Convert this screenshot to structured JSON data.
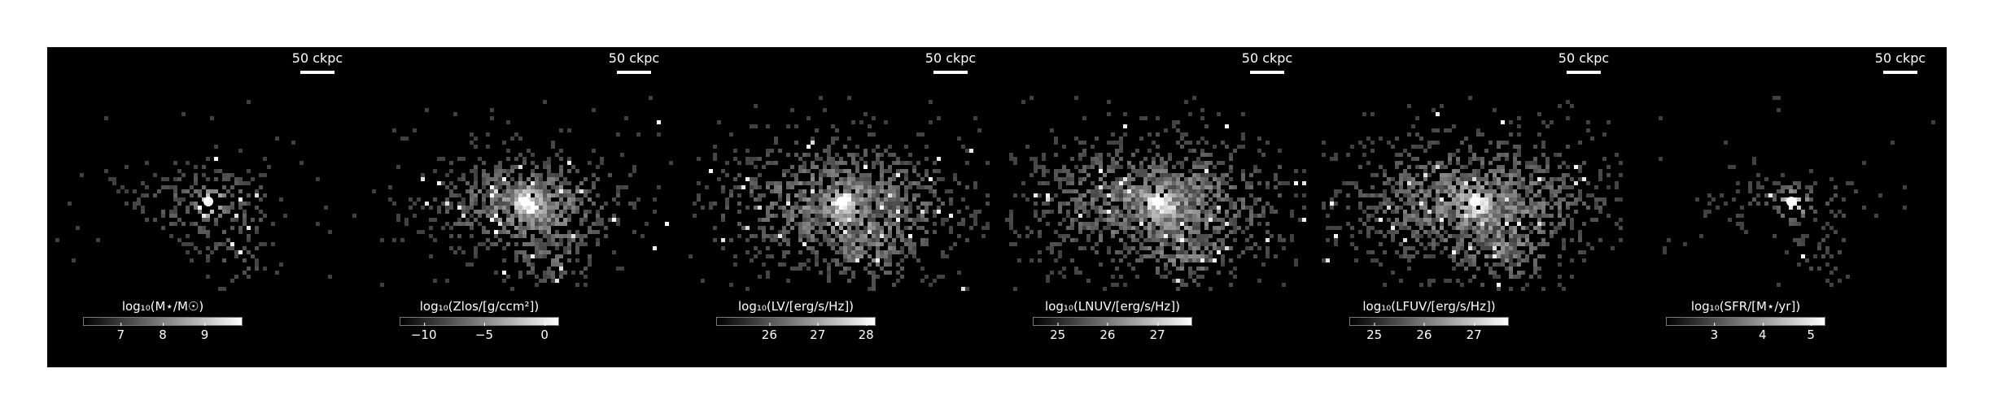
{
  "panels": [
    {
      "scale_label": "50 ckpc",
      "colorbar": {
        "label": "log₁₀(M⋆/M☉)",
        "range": [
          6.1,
          9.9
        ],
        "ticks": [
          "7",
          "8",
          "9"
        ],
        "tick_values": [
          7,
          8,
          9
        ]
      }
    },
    {
      "scale_label": "50 ckpc",
      "colorbar": {
        "label": "log₁₀(Zlos/[g/ccm²])",
        "range": [
          -12,
          1.2
        ],
        "ticks": [
          "−10",
          "−5",
          "0"
        ],
        "tick_values": [
          -10,
          -5,
          0
        ]
      }
    },
    {
      "scale_label": "50 ckpc",
      "colorbar": {
        "label": "log₁₀(LV/[erg/s/Hz])",
        "range": [
          24.9,
          28.2
        ],
        "ticks": [
          "26",
          "27",
          "28"
        ],
        "tick_values": [
          26,
          27,
          28
        ]
      }
    },
    {
      "scale_label": "50 ckpc",
      "colorbar": {
        "label": "log₁₀(LNUV/[erg/s/Hz])",
        "range": [
          24.5,
          27.7
        ],
        "ticks": [
          "25",
          "26",
          "27"
        ],
        "tick_values": [
          25,
          26,
          27
        ]
      }
    },
    {
      "scale_label": "50 ckpc",
      "colorbar": {
        "label": "log₁₀(LFUV/[erg/s/Hz])",
        "range": [
          24.5,
          27.7
        ],
        "ticks": [
          "25",
          "26",
          "27"
        ],
        "tick_values": [
          25,
          26,
          27
        ]
      }
    },
    {
      "scale_label": "50 ckpc",
      "colorbar": {
        "label": "log₁₀(SFR/[M⋆/yr])",
        "range": [
          2.0,
          5.3
        ],
        "ticks": [
          "3",
          "4",
          "5"
        ],
        "tick_values": [
          3,
          4,
          5
        ]
      }
    }
  ]
}
